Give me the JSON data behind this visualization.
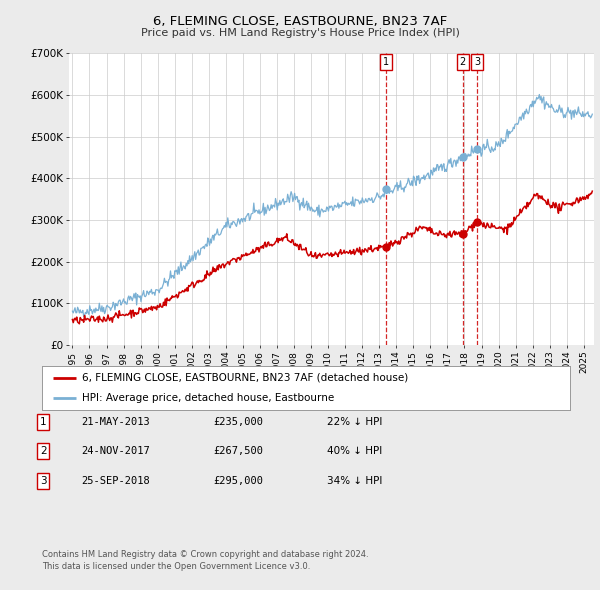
{
  "title": "6, FLEMING CLOSE, EASTBOURNE, BN23 7AF",
  "subtitle": "Price paid vs. HM Land Registry's House Price Index (HPI)",
  "legend_label_red": "6, FLEMING CLOSE, EASTBOURNE, BN23 7AF (detached house)",
  "legend_label_blue": "HPI: Average price, detached house, Eastbourne",
  "footer1": "Contains HM Land Registry data © Crown copyright and database right 2024.",
  "footer2": "This data is licensed under the Open Government Licence v3.0.",
  "transactions": [
    {
      "num": 1,
      "date": "21-MAY-2013",
      "price": "£235,000",
      "pct": "22%",
      "year": 2013.38
    },
    {
      "num": 2,
      "date": "24-NOV-2017",
      "price": "£267,500",
      "pct": "40%",
      "year": 2017.9
    },
    {
      "num": 3,
      "date": "25-SEP-2018",
      "price": "£295,000",
      "pct": "34%",
      "year": 2018.73
    }
  ],
  "transaction_prices": [
    235000,
    267500,
    295000
  ],
  "red_color": "#cc0000",
  "blue_color": "#7ab0d4",
  "vline_color": "#cc0000",
  "bg_color": "#ebebeb",
  "plot_bg_color": "#ffffff",
  "grid_color": "#cccccc",
  "ylim": [
    0,
    700000
  ],
  "xlim_start": 1994.8,
  "xlim_end": 2025.6,
  "yticks": [
    0,
    100000,
    200000,
    300000,
    400000,
    500000,
    600000,
    700000
  ],
  "ytick_labels": [
    "£0",
    "£100K",
    "£200K",
    "£300K",
    "£400K",
    "£500K",
    "£600K",
    "£700K"
  ],
  "xticks": [
    1995,
    1996,
    1997,
    1998,
    1999,
    2000,
    2001,
    2002,
    2003,
    2004,
    2005,
    2006,
    2007,
    2008,
    2009,
    2010,
    2011,
    2012,
    2013,
    2014,
    2015,
    2016,
    2017,
    2018,
    2019,
    2020,
    2021,
    2022,
    2023,
    2024,
    2025
  ]
}
